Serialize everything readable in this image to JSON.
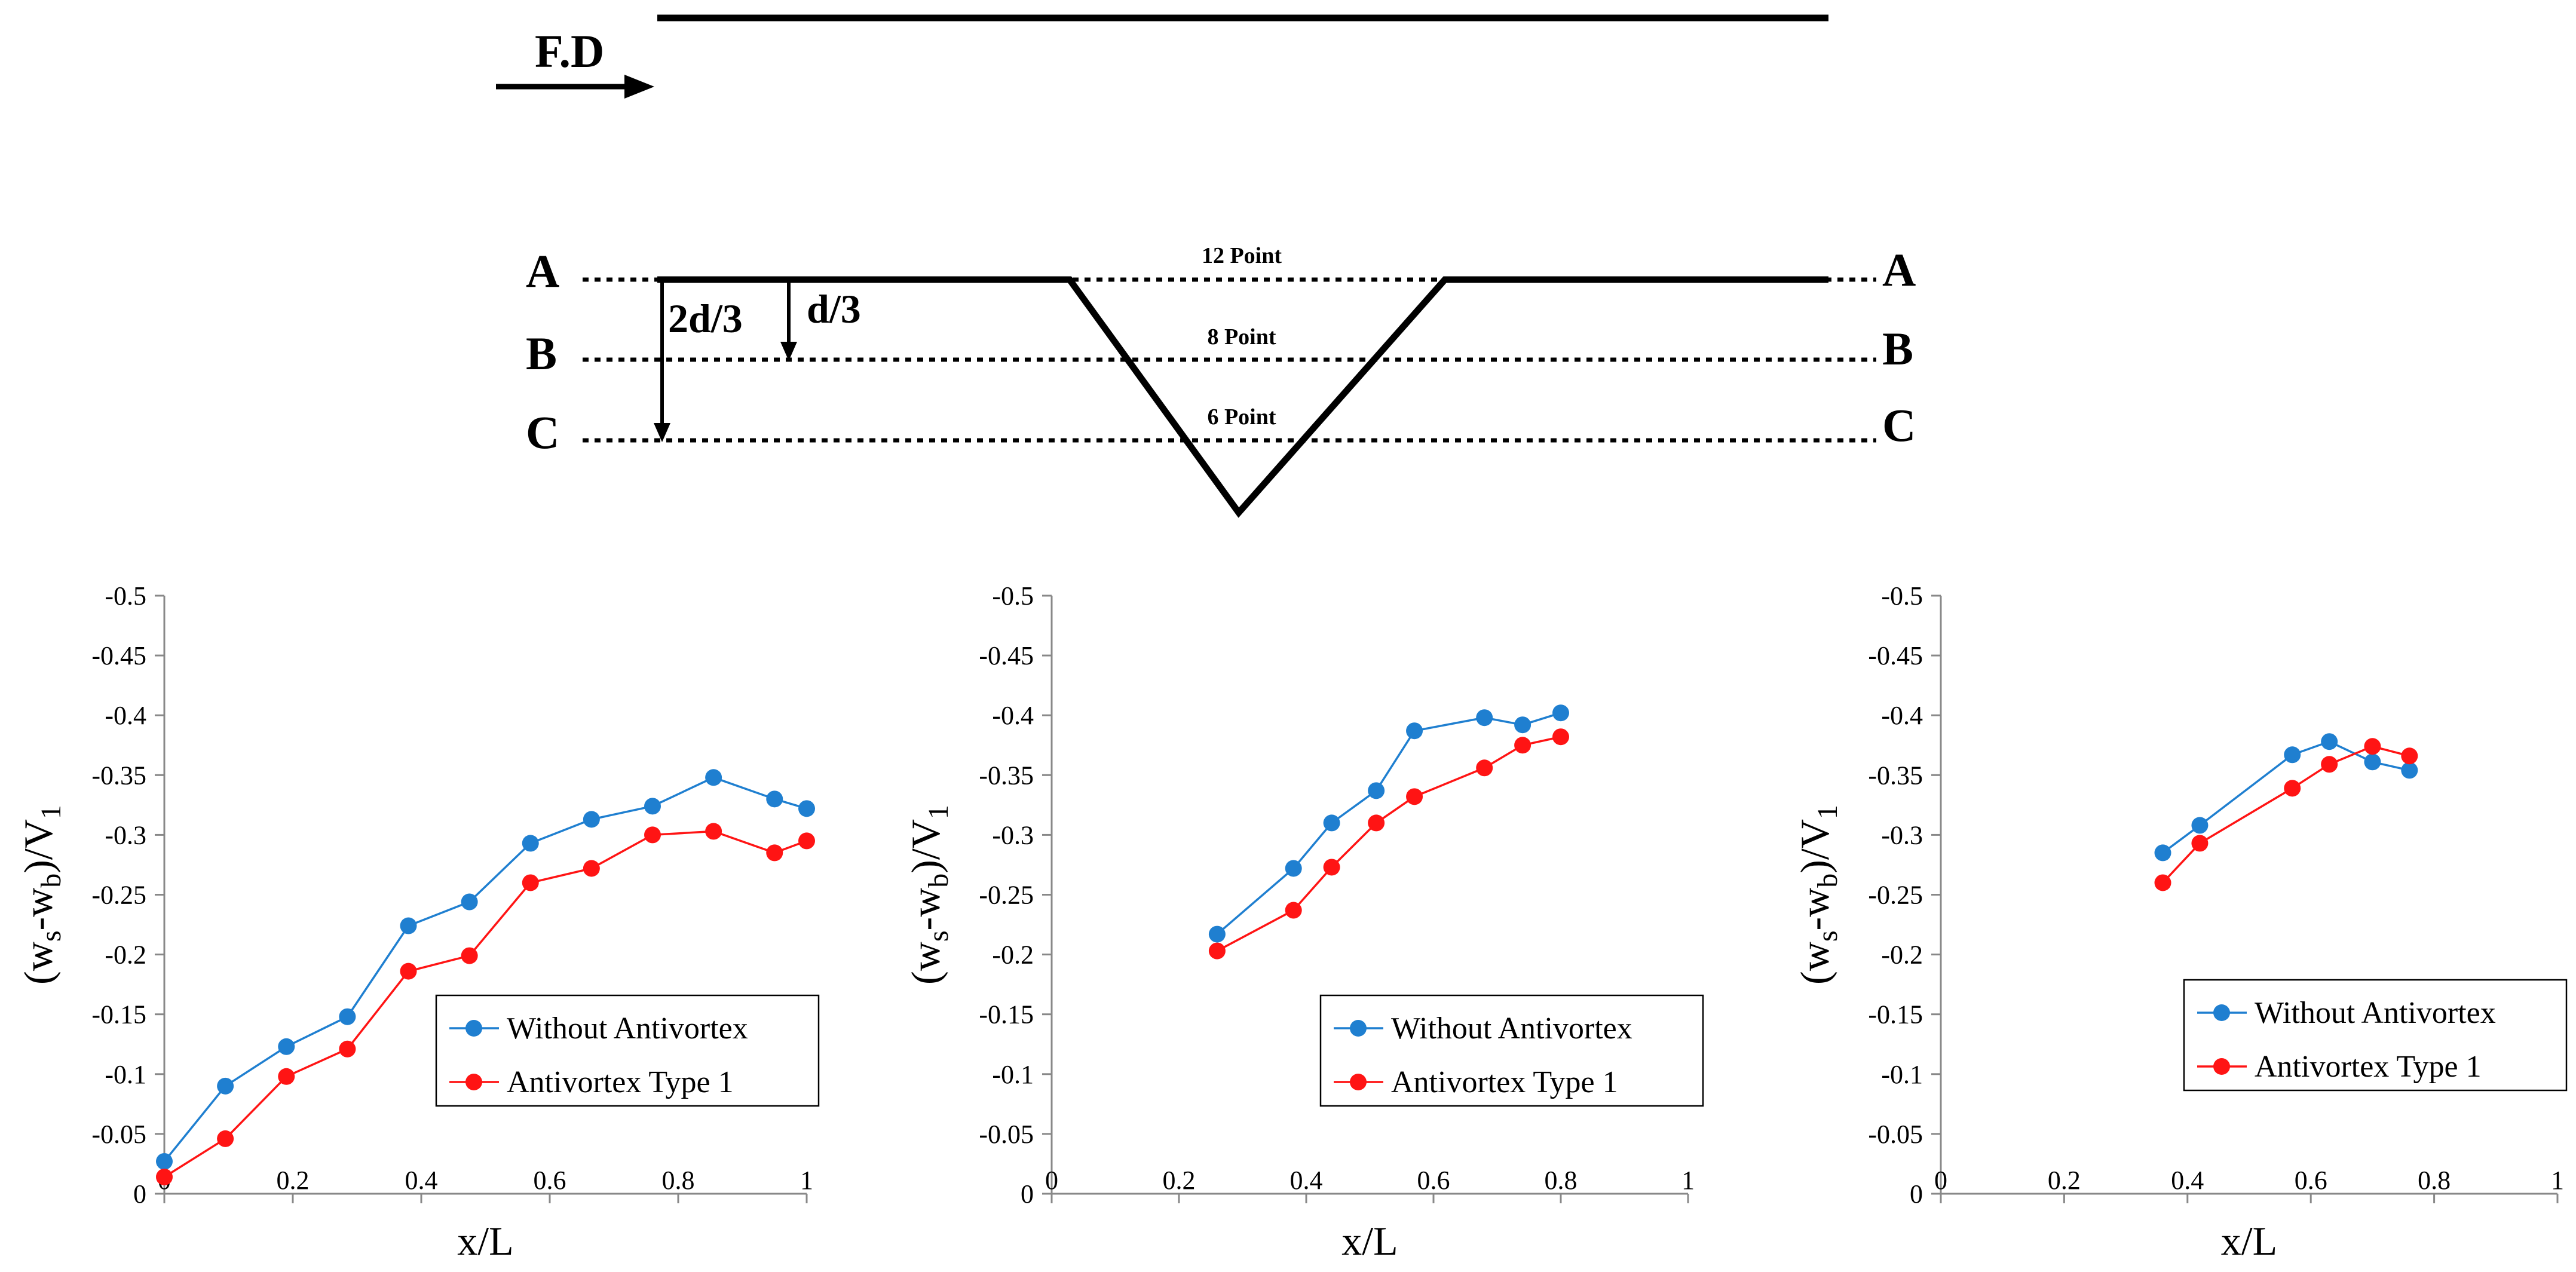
{
  "diagram": {
    "flow_direction_label": "F.D",
    "section_labels": {
      "A": "A",
      "B": "B",
      "C": "C"
    },
    "depth_labels": {
      "d_third": "d/3",
      "two_d_third": "2d/3"
    },
    "point_labels": {
      "A": "12 Point",
      "B": "8 Point",
      "C": "6 Point"
    }
  },
  "colors": {
    "without": "#1F7FD0",
    "antivortex": "#FF1414",
    "axis": "#888888",
    "line": "#000000"
  },
  "chart_data": [
    {
      "type": "line",
      "title": "",
      "xlabel": "x/L",
      "ylabel_main": "(w",
      "ylabel_sub_s": "s",
      "ylabel_mid": "-w",
      "ylabel_sub_b": "b",
      "ylabel_end": ")/V",
      "ylabel_sub_1": "1",
      "xlim": [
        0,
        1
      ],
      "ylim": [
        0,
        -0.5
      ],
      "x_ticks": [
        0.2,
        0.4,
        0.6,
        0.8,
        1
      ],
      "x_tick_labels": [
        "0.2",
        "0.4",
        "0.6",
        "0.8",
        "1"
      ],
      "origin_label": "0",
      "y_ticks": [
        0,
        -0.05,
        -0.1,
        -0.15,
        -0.2,
        -0.25,
        -0.3,
        -0.35,
        -0.4,
        -0.45,
        -0.5
      ],
      "y_tick_labels": [
        "0",
        "-0.05",
        "-0.1",
        "-0.15",
        "-0.2",
        "-0.25",
        "-0.3",
        "-0.35",
        "-0.4",
        "-0.45",
        "-0.5"
      ],
      "legend_position": "bottom-right",
      "series": [
        {
          "name": "Without Antivortex",
          "color": "#1F7FD0",
          "x": [
            0.0,
            0.095,
            0.19,
            0.285,
            0.38,
            0.475,
            0.57,
            0.665,
            0.76,
            0.855,
            0.95,
            1.0
          ],
          "values": [
            -0.027,
            -0.09,
            -0.123,
            -0.148,
            -0.224,
            -0.244,
            -0.293,
            -0.313,
            -0.324,
            -0.348,
            -0.33,
            -0.322
          ]
        },
        {
          "name": "Antivortex Type 1",
          "color": "#FF1414",
          "x": [
            0.0,
            0.095,
            0.19,
            0.285,
            0.38,
            0.475,
            0.57,
            0.665,
            0.76,
            0.855,
            0.95,
            1.0
          ],
          "values": [
            -0.014,
            -0.046,
            -0.098,
            -0.121,
            -0.186,
            -0.199,
            -0.26,
            -0.272,
            -0.3,
            -0.303,
            -0.285,
            -0.295
          ]
        }
      ]
    },
    {
      "type": "line",
      "title": "",
      "xlabel": "x/L",
      "ylabel_main": "(w",
      "ylabel_sub_s": "s",
      "ylabel_mid": "-w",
      "ylabel_sub_b": "b",
      "ylabel_end": ")/V",
      "ylabel_sub_1": "1",
      "xlim": [
        0,
        1
      ],
      "ylim": [
        0,
        -0.5
      ],
      "x_ticks": [
        0.2,
        0.4,
        0.6,
        0.8,
        1
      ],
      "x_tick_labels": [
        "0.2",
        "0.4",
        "0.6",
        "0.8",
        "1"
      ],
      "origin_label": "0",
      "y_ticks": [
        0,
        -0.05,
        -0.1,
        -0.15,
        -0.2,
        -0.25,
        -0.3,
        -0.35,
        -0.4,
        -0.45,
        -0.5
      ],
      "y_tick_labels": [
        "0",
        "-0.05",
        "-0.1",
        "-0.15",
        "-0.2",
        "-0.25",
        "-0.3",
        "-0.35",
        "-0.4",
        "-0.45",
        "-0.5"
      ],
      "legend_position": "bottom-right",
      "series": [
        {
          "name": "Without Antivortex",
          "color": "#1F7FD0",
          "x": [
            0.26,
            0.38,
            0.44,
            0.51,
            0.57,
            0.68,
            0.74,
            0.8
          ],
          "values": [
            -0.217,
            -0.272,
            -0.31,
            -0.337,
            -0.387,
            -0.398,
            -0.392,
            -0.402
          ]
        },
        {
          "name": "Antivortex Type 1",
          "color": "#FF1414",
          "x": [
            0.26,
            0.38,
            0.44,
            0.51,
            0.57,
            0.68,
            0.74,
            0.8
          ],
          "values": [
            -0.203,
            -0.237,
            -0.273,
            -0.31,
            -0.332,
            -0.356,
            -0.375,
            -0.382
          ]
        }
      ]
    },
    {
      "type": "line",
      "title": "",
      "xlabel": "x/L",
      "ylabel_main": "(w",
      "ylabel_sub_s": "s",
      "ylabel_mid": "-w",
      "ylabel_sub_b": "b",
      "ylabel_end": ")/V",
      "ylabel_sub_1": "1",
      "xlim": [
        0,
        1
      ],
      "ylim": [
        0,
        -0.5
      ],
      "x_ticks": [
        0.2,
        0.4,
        0.6,
        0.8,
        1
      ],
      "x_tick_labels": [
        "0.2",
        "0.4",
        "0.6",
        "0.8",
        "1"
      ],
      "origin_label": "0",
      "y_ticks": [
        0,
        -0.05,
        -0.1,
        -0.15,
        -0.2,
        -0.25,
        -0.3,
        -0.35,
        -0.4,
        -0.45,
        -0.5
      ],
      "y_tick_labels": [
        "0",
        "-0.05",
        "-0.1",
        "-0.15",
        "-0.2",
        "-0.25",
        "-0.3",
        "-0.35",
        "-0.4",
        "-0.45",
        "-0.5"
      ],
      "legend_position": "bottom-right",
      "series": [
        {
          "name": "Without Antivortex",
          "color": "#1F7FD0",
          "x": [
            0.36,
            0.42,
            0.57,
            0.63,
            0.7,
            0.76
          ],
          "values": [
            -0.285,
            -0.308,
            -0.367,
            -0.378,
            -0.361,
            -0.354
          ]
        },
        {
          "name": "Antivortex Type 1",
          "color": "#FF1414",
          "x": [
            0.36,
            0.42,
            0.57,
            0.63,
            0.7,
            0.76
          ],
          "values": [
            -0.26,
            -0.293,
            -0.339,
            -0.359,
            -0.374,
            -0.366
          ]
        }
      ]
    }
  ]
}
